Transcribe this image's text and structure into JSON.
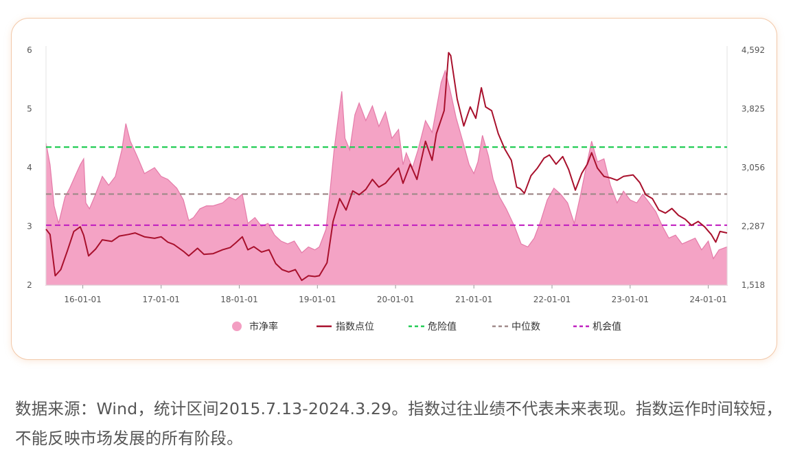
{
  "chart_data": {
    "type": "area",
    "title": "",
    "x_tick_labels": [
      "16-01-01",
      "17-01-01",
      "18-01-01",
      "19-01-01",
      "20-01-01",
      "21-01-01",
      "22-01-01",
      "23-01-01",
      "24-01-01"
    ],
    "x_range": [
      "2015-07-13",
      "2024-03-29"
    ],
    "y_left": {
      "ticks": [
        "2",
        "3",
        "4",
        "5",
        "6"
      ],
      "range": [
        2,
        6
      ]
    },
    "y_right": {
      "ticks": [
        "1,518",
        "2,287",
        "3,056",
        "3,825",
        "4,592"
      ],
      "range": [
        1518,
        4592
      ]
    },
    "grid": false,
    "legend_position": "bottom",
    "reference_lines": [
      {
        "name": "危险值",
        "axis": "left",
        "value": 4.35,
        "color": "#22cc55",
        "style": "dashed"
      },
      {
        "name": "中位数",
        "axis": "left",
        "value": 3.55,
        "color": "#a08a8a",
        "style": "dashed"
      },
      {
        "name": "机会值",
        "axis": "left",
        "value": 3.02,
        "color": "#c020c0",
        "style": "dashed"
      }
    ],
    "series": [
      {
        "name": "市净率",
        "type": "area",
        "axis": "left",
        "color": "#f39ec2",
        "line_color": "#e47aa8",
        "points": [
          [
            "2015-07-13",
            4.42
          ],
          [
            "2015-08-01",
            4.05
          ],
          [
            "2015-08-20",
            3.35
          ],
          [
            "2015-09-10",
            3.05
          ],
          [
            "2015-10-10",
            3.5
          ],
          [
            "2015-11-01",
            3.65
          ],
          [
            "2015-12-01",
            3.9
          ],
          [
            "2015-12-20",
            4.05
          ],
          [
            "2016-01-05",
            4.15
          ],
          [
            "2016-01-15",
            3.4
          ],
          [
            "2016-02-01",
            3.3
          ],
          [
            "2016-03-01",
            3.55
          ],
          [
            "2016-04-01",
            3.85
          ],
          [
            "2016-05-01",
            3.7
          ],
          [
            "2016-06-01",
            3.85
          ],
          [
            "2016-07-01",
            4.3
          ],
          [
            "2016-07-20",
            4.75
          ],
          [
            "2016-08-10",
            4.45
          ],
          [
            "2016-09-10",
            4.2
          ],
          [
            "2016-10-15",
            3.9
          ],
          [
            "2016-12-01",
            4.0
          ],
          [
            "2017-01-01",
            3.85
          ],
          [
            "2017-02-01",
            3.8
          ],
          [
            "2017-03-15",
            3.65
          ],
          [
            "2017-04-15",
            3.45
          ],
          [
            "2017-05-10",
            3.1
          ],
          [
            "2017-06-01",
            3.15
          ],
          [
            "2017-07-01",
            3.3
          ],
          [
            "2017-08-01",
            3.35
          ],
          [
            "2017-09-01",
            3.35
          ],
          [
            "2017-10-15",
            3.4
          ],
          [
            "2017-11-15",
            3.5
          ],
          [
            "2017-12-15",
            3.45
          ],
          [
            "2018-01-15",
            3.55
          ],
          [
            "2018-02-10",
            3.05
          ],
          [
            "2018-03-15",
            3.15
          ],
          [
            "2018-04-15",
            3.0
          ],
          [
            "2018-05-15",
            3.05
          ],
          [
            "2018-06-15",
            2.85
          ],
          [
            "2018-07-15",
            2.75
          ],
          [
            "2018-08-15",
            2.7
          ],
          [
            "2018-09-15",
            2.75
          ],
          [
            "2018-10-20",
            2.55
          ],
          [
            "2018-11-20",
            2.65
          ],
          [
            "2018-12-20",
            2.6
          ],
          [
            "2019-01-10",
            2.65
          ],
          [
            "2019-02-10",
            2.95
          ],
          [
            "2019-03-01",
            3.6
          ],
          [
            "2019-03-20",
            4.3
          ],
          [
            "2019-04-10",
            4.9
          ],
          [
            "2019-04-25",
            5.3
          ],
          [
            "2019-05-10",
            4.5
          ],
          [
            "2019-06-01",
            4.3
          ],
          [
            "2019-06-25",
            4.9
          ],
          [
            "2019-07-15",
            5.1
          ],
          [
            "2019-08-15",
            4.8
          ],
          [
            "2019-09-15",
            5.05
          ],
          [
            "2019-10-15",
            4.7
          ],
          [
            "2019-11-15",
            4.95
          ],
          [
            "2019-12-15",
            4.5
          ],
          [
            "2020-01-15",
            4.65
          ],
          [
            "2020-02-05",
            4.05
          ],
          [
            "2020-02-20",
            4.25
          ],
          [
            "2020-03-20",
            4.0
          ],
          [
            "2020-04-15",
            4.3
          ],
          [
            "2020-05-20",
            4.8
          ],
          [
            "2020-06-20",
            4.6
          ],
          [
            "2020-07-10",
            5.0
          ],
          [
            "2020-08-01",
            5.45
          ],
          [
            "2020-08-20",
            5.65
          ],
          [
            "2020-09-10",
            5.35
          ],
          [
            "2020-10-10",
            4.85
          ],
          [
            "2020-11-10",
            4.45
          ],
          [
            "2020-12-10",
            4.05
          ],
          [
            "2021-01-01",
            3.9
          ],
          [
            "2021-01-20",
            4.1
          ],
          [
            "2021-02-10",
            4.55
          ],
          [
            "2021-03-10",
            4.2
          ],
          [
            "2021-04-01",
            3.8
          ],
          [
            "2021-05-01",
            3.5
          ],
          [
            "2021-06-01",
            3.3
          ],
          [
            "2021-07-10",
            3.0
          ],
          [
            "2021-08-10",
            2.7
          ],
          [
            "2021-09-10",
            2.65
          ],
          [
            "2021-10-10",
            2.8
          ],
          [
            "2021-11-10",
            3.1
          ],
          [
            "2021-12-10",
            3.45
          ],
          [
            "2022-01-10",
            3.65
          ],
          [
            "2022-02-10",
            3.55
          ],
          [
            "2022-03-15",
            3.4
          ],
          [
            "2022-04-15",
            3.05
          ],
          [
            "2022-05-15",
            3.55
          ],
          [
            "2022-06-15",
            4.1
          ],
          [
            "2022-07-05",
            4.45
          ],
          [
            "2022-08-01",
            4.1
          ],
          [
            "2022-09-01",
            4.15
          ],
          [
            "2022-10-01",
            3.7
          ],
          [
            "2022-11-01",
            3.4
          ],
          [
            "2022-12-01",
            3.6
          ],
          [
            "2023-01-01",
            3.45
          ],
          [
            "2023-02-01",
            3.4
          ],
          [
            "2023-03-01",
            3.55
          ],
          [
            "2023-04-01",
            3.4
          ],
          [
            "2023-05-01",
            3.25
          ],
          [
            "2023-06-01",
            3.0
          ],
          [
            "2023-07-01",
            2.8
          ],
          [
            "2023-08-01",
            2.85
          ],
          [
            "2023-09-01",
            2.7
          ],
          [
            "2023-10-01",
            2.75
          ],
          [
            "2023-11-01",
            2.8
          ],
          [
            "2023-12-01",
            2.6
          ],
          [
            "2024-01-01",
            2.75
          ],
          [
            "2024-01-25",
            2.45
          ],
          [
            "2024-02-20",
            2.6
          ],
          [
            "2024-03-29",
            2.65
          ]
        ]
      },
      {
        "name": "指数点位",
        "type": "line",
        "axis": "right",
        "color": "#a8102c",
        "points": [
          [
            "2015-07-13",
            2250
          ],
          [
            "2015-08-01",
            2180
          ],
          [
            "2015-08-25",
            1640
          ],
          [
            "2015-09-20",
            1720
          ],
          [
            "2015-10-20",
            1960
          ],
          [
            "2015-11-20",
            2220
          ],
          [
            "2015-12-20",
            2280
          ],
          [
            "2016-01-05",
            2170
          ],
          [
            "2016-01-28",
            1900
          ],
          [
            "2016-03-01",
            1990
          ],
          [
            "2016-04-01",
            2110
          ],
          [
            "2016-05-15",
            2090
          ],
          [
            "2016-06-20",
            2160
          ],
          [
            "2016-08-01",
            2180
          ],
          [
            "2016-09-01",
            2200
          ],
          [
            "2016-10-15",
            2150
          ],
          [
            "2016-12-01",
            2130
          ],
          [
            "2017-01-01",
            2150
          ],
          [
            "2017-02-01",
            2080
          ],
          [
            "2017-03-01",
            2050
          ],
          [
            "2017-04-15",
            1960
          ],
          [
            "2017-05-10",
            1900
          ],
          [
            "2017-06-20",
            2000
          ],
          [
            "2017-07-20",
            1920
          ],
          [
            "2017-09-01",
            1930
          ],
          [
            "2017-10-15",
            1980
          ],
          [
            "2017-11-20",
            2010
          ],
          [
            "2017-12-15",
            2070
          ],
          [
            "2018-01-15",
            2150
          ],
          [
            "2018-02-10",
            1980
          ],
          [
            "2018-03-10",
            2020
          ],
          [
            "2018-04-15",
            1950
          ],
          [
            "2018-05-20",
            1980
          ],
          [
            "2018-06-20",
            1800
          ],
          [
            "2018-07-20",
            1720
          ],
          [
            "2018-08-20",
            1690
          ],
          [
            "2018-09-20",
            1720
          ],
          [
            "2018-10-20",
            1580
          ],
          [
            "2018-11-20",
            1640
          ],
          [
            "2018-12-20",
            1630
          ],
          [
            "2019-01-10",
            1640
          ],
          [
            "2019-02-15",
            1810
          ],
          [
            "2019-03-15",
            2350
          ],
          [
            "2019-04-15",
            2650
          ],
          [
            "2019-05-15",
            2500
          ],
          [
            "2019-06-15",
            2750
          ],
          [
            "2019-07-15",
            2700
          ],
          [
            "2019-08-15",
            2770
          ],
          [
            "2019-09-15",
            2900
          ],
          [
            "2019-10-15",
            2800
          ],
          [
            "2019-11-15",
            2850
          ],
          [
            "2019-12-15",
            2950
          ],
          [
            "2020-01-15",
            3050
          ],
          [
            "2020-02-05",
            2850
          ],
          [
            "2020-03-10",
            3100
          ],
          [
            "2020-04-10",
            2900
          ],
          [
            "2020-05-20",
            3400
          ],
          [
            "2020-06-20",
            3150
          ],
          [
            "2020-07-10",
            3500
          ],
          [
            "2020-08-15",
            3800
          ],
          [
            "2020-09-05",
            4560
          ],
          [
            "2020-09-15",
            4520
          ],
          [
            "2020-10-15",
            3950
          ],
          [
            "2020-11-15",
            3600
          ],
          [
            "2020-12-15",
            3850
          ],
          [
            "2021-01-10",
            3700
          ],
          [
            "2021-02-05",
            4100
          ],
          [
            "2021-02-25",
            3850
          ],
          [
            "2021-03-25",
            3800
          ],
          [
            "2021-04-25",
            3500
          ],
          [
            "2021-05-25",
            3300
          ],
          [
            "2021-06-25",
            3150
          ],
          [
            "2021-07-20",
            2800
          ],
          [
            "2021-08-05",
            2780
          ],
          [
            "2021-08-25",
            2720
          ],
          [
            "2021-09-25",
            2950
          ],
          [
            "2021-10-25",
            3050
          ],
          [
            "2021-11-25",
            3180
          ],
          [
            "2021-12-20",
            3220
          ],
          [
            "2022-01-20",
            3100
          ],
          [
            "2022-02-20",
            3200
          ],
          [
            "2022-03-20",
            3030
          ],
          [
            "2022-04-20",
            2760
          ],
          [
            "2022-05-20",
            2980
          ],
          [
            "2022-06-15",
            3100
          ],
          [
            "2022-07-05",
            3250
          ],
          [
            "2022-08-01",
            3050
          ],
          [
            "2022-09-01",
            2940
          ],
          [
            "2022-10-01",
            2920
          ],
          [
            "2022-11-01",
            2890
          ],
          [
            "2022-12-01",
            2940
          ],
          [
            "2023-01-15",
            2960
          ],
          [
            "2023-02-15",
            2860
          ],
          [
            "2023-03-15",
            2700
          ],
          [
            "2023-04-15",
            2650
          ],
          [
            "2023-05-15",
            2500
          ],
          [
            "2023-06-15",
            2460
          ],
          [
            "2023-07-15",
            2520
          ],
          [
            "2023-08-15",
            2430
          ],
          [
            "2023-09-15",
            2380
          ],
          [
            "2023-10-15",
            2300
          ],
          [
            "2023-11-15",
            2350
          ],
          [
            "2023-12-15",
            2280
          ],
          [
            "2024-01-15",
            2180
          ],
          [
            "2024-02-05",
            2080
          ],
          [
            "2024-02-25",
            2220
          ],
          [
            "2024-03-29",
            2200
          ]
        ]
      }
    ]
  },
  "legend": {
    "items": [
      {
        "label": "市净率",
        "symbol": "dot",
        "color": "#f39ec2"
      },
      {
        "label": "指数点位",
        "symbol": "line",
        "color": "#a8102c"
      },
      {
        "label": "危险值",
        "symbol": "dash",
        "color": "#22cc55"
      },
      {
        "label": "中位数",
        "symbol": "dash",
        "color": "#a08a8a"
      },
      {
        "label": "机会值",
        "symbol": "dash",
        "color": "#c020c0"
      }
    ]
  },
  "caption": {
    "text": "数据来源：Wind，统计区间2015.7.13-2024.3.29。指数过往业绩不代表未来表现。指数运作时间较短，不能反映市场发展的所有阶段。"
  }
}
